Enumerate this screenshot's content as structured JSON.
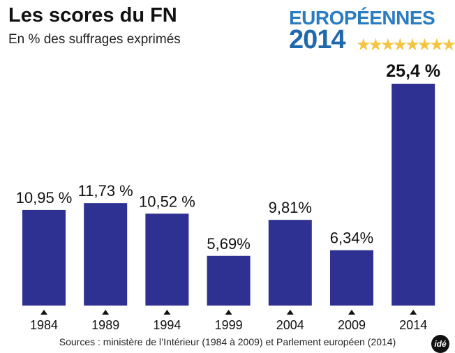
{
  "chart_data": {
    "type": "bar",
    "title": "Les scores du FN",
    "subtitle": "En % des suffrages exprimés",
    "categories": [
      "1984",
      "1989",
      "1994",
      "1999",
      "2004",
      "2009",
      "2014"
    ],
    "values": [
      10.95,
      11.73,
      10.52,
      5.69,
      9.81,
      6.34,
      25.4
    ],
    "data_labels": [
      "10,95 %",
      "11,73 %",
      "10,52 %",
      "5,69%",
      "9,81%",
      "6,34%",
      "25,4 %"
    ],
    "xlabel": "",
    "ylabel": "",
    "ylim": [
      0,
      25.4
    ],
    "grid": false,
    "bar_color": "#2e3192",
    "source": "Sources : ministère de l’Intérieur (1984 à 2009) et Parlement européen (2014)"
  },
  "logo": {
    "line1": "EUROPÉENNES",
    "line2": "2014",
    "stars": "★★★★★★★★★"
  },
  "brand": "idé"
}
